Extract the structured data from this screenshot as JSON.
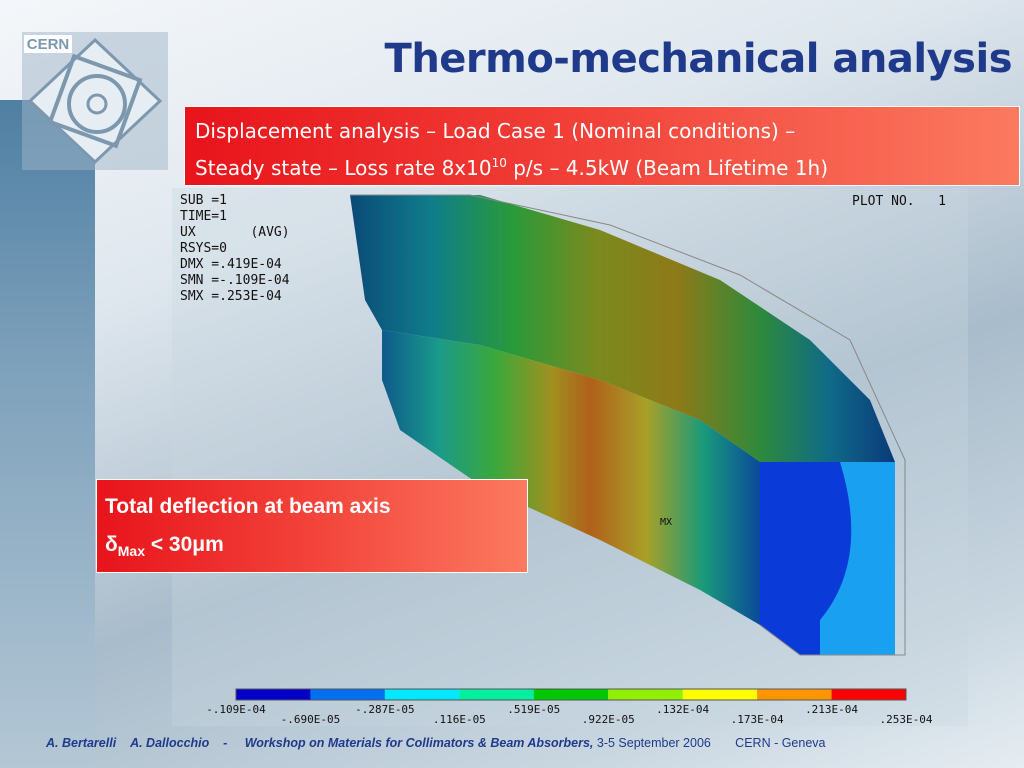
{
  "header": {
    "logo": "CERN",
    "title": "Thermo-mechanical analysis"
  },
  "description": {
    "line1": "Displacement analysis – Load Case 1 (Nominal conditions) –",
    "line2": "Steady state – Loss rate 8x10",
    "exponent": "10",
    "line2_end": " p/s – 4.5kW (Beam Lifetime 1h)"
  },
  "plot": {
    "info": [
      "SUB =1",
      "TIME=1",
      "UX       (AVG)",
      "RSYS=0",
      "DMX =.419E-04",
      "SMN =-.109E-04",
      "SMX =.253E-04"
    ],
    "plot_no": "PLOT NO.   1",
    "max_marker": "MX",
    "legend_labels": [
      "-.109E-04",
      "-.690E-05",
      "-.287E-05",
      ".116E-05",
      ".519E-05",
      ".922E-05",
      ".132E-04",
      ".173E-04",
      ".213E-04",
      ".253E-04"
    ]
  },
  "result": {
    "heading": "Total deflection at beam axis",
    "symbol": "δ",
    "subscript": "Max",
    "value": " < 30μm"
  },
  "footer": {
    "author1": "A. Bertarelli",
    "author2": "A. Dallocchio",
    "separator": "-",
    "event": "Workshop on Materials for Collimators & Beam Absorbers,",
    "date": " 3-5 September 2006",
    "location": "CERN - Geneva"
  }
}
